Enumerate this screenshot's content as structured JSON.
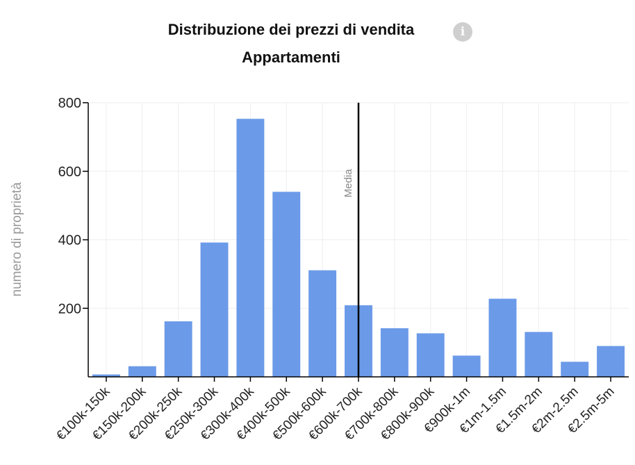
{
  "header": {
    "title": "Distribuzione dei prezzi di vendita",
    "subtitle": "Appartamenti",
    "info_icon": "info-icon"
  },
  "colors": {
    "bar": "#6b9ae8",
    "axis": "#000000",
    "grid": "#eeeeee",
    "mean_line": "#000000"
  },
  "chart_data": {
    "type": "bar",
    "title": "Distribuzione dei prezzi di vendita",
    "subtitle": "Appartamenti",
    "xlabel": "",
    "ylabel": "numero di proprietà",
    "ylim": [
      0,
      800
    ],
    "yticks": [
      200,
      400,
      600,
      800
    ],
    "grid": true,
    "categories": [
      "€100k-150k",
      "€150k-200k",
      "€200k-250k",
      "€250k-300k",
      "€300k-400k",
      "€400k-500k",
      "€500k-600k",
      "€600k-700k",
      "€700k-800k",
      "€800k-900k",
      "€900k-1m",
      "€1m-1.5m",
      "€1.5m-2m",
      "€2m-2.5m",
      "€2.5m-5m"
    ],
    "values": [
      7,
      31,
      162,
      392,
      753,
      540,
      311,
      209,
      142,
      127,
      62,
      228,
      131,
      44,
      90
    ],
    "annotation": {
      "label": "Media",
      "category": "€600k-700k"
    }
  }
}
